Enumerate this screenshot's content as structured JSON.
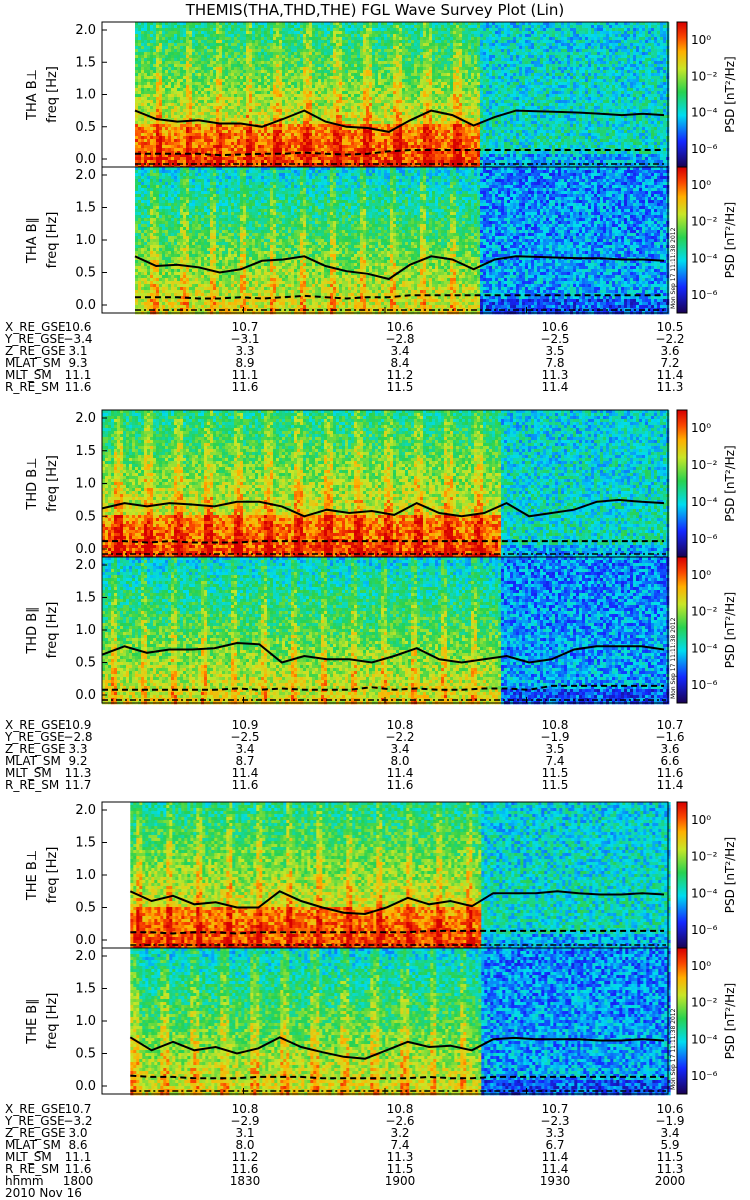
{
  "title": "THEMIS(THA,THD,THE) FGL Wave Survey Plot (Lin)",
  "stamp": "Mon Sep 17 11:11:38 2012",
  "colorbar": {
    "label": "PSD [nT²/Hz]",
    "ticks": [
      "10⁰",
      "10⁻²",
      "10⁻⁴",
      "10⁻⁶"
    ]
  },
  "y_ticks": [
    "0.0",
    "0.5",
    "1.0",
    "1.5",
    "2.0"
  ],
  "colors": {
    "line": "#000000",
    "background": "#ffffff"
  },
  "chart_data": [
    {
      "type": "heatmap",
      "probe": "THA",
      "ylabel": "THA B⊥",
      "yunit": "freq [Hz]",
      "ylim": [
        0,
        2
      ],
      "data_start_hhmm": "1807",
      "transition_hhmm": "1920",
      "solid_line": [
        0.75,
        0.62,
        0.58,
        0.6,
        0.55,
        0.55,
        0.5,
        0.62,
        0.75,
        0.58,
        0.5,
        0.48,
        0.42,
        0.6,
        0.75,
        0.68,
        0.52,
        0.65,
        0.75,
        0.74,
        0.73,
        0.72,
        0.7,
        0.68,
        0.7,
        0.68
      ],
      "dashed_line": [
        0.08,
        0.08,
        0.08,
        0.08,
        0.06,
        0.07,
        0.08,
        0.08,
        0.1,
        0.08,
        0.07,
        0.08,
        0.12,
        0.14,
        0.14,
        0.14,
        0.14,
        0.14,
        0.14,
        0.14,
        0.14,
        0.14,
        0.14,
        0.14,
        0.14,
        0.14
      ]
    },
    {
      "type": "heatmap",
      "probe": "THA",
      "ylabel": "THA B∥",
      "yunit": "freq [Hz]",
      "ylim": [
        0,
        2
      ],
      "data_start_hhmm": "1807",
      "transition_hhmm": "1920",
      "solid_line": [
        0.75,
        0.6,
        0.62,
        0.58,
        0.5,
        0.55,
        0.68,
        0.7,
        0.75,
        0.6,
        0.52,
        0.48,
        0.4,
        0.62,
        0.75,
        0.7,
        0.55,
        0.7,
        0.75,
        0.74,
        0.73,
        0.72,
        0.72,
        0.7,
        0.7,
        0.68
      ],
      "dashed_line": [
        0.12,
        0.12,
        0.12,
        0.1,
        0.1,
        0.12,
        0.1,
        0.12,
        0.14,
        0.12,
        0.1,
        0.12,
        0.12,
        0.15,
        0.15,
        0.15,
        0.15,
        0.15,
        0.15,
        0.15,
        0.15,
        0.15,
        0.15,
        0.15,
        0.15,
        0.15
      ]
    },
    {
      "type": "heatmap",
      "probe": "THD",
      "ylabel": "THD B⊥",
      "yunit": "freq [Hz]",
      "ylim": [
        0,
        2
      ],
      "data_start_hhmm": "1800",
      "transition_hhmm": "1924",
      "solid_line": [
        0.62,
        0.7,
        0.65,
        0.7,
        0.68,
        0.65,
        0.72,
        0.72,
        0.65,
        0.5,
        0.6,
        0.55,
        0.58,
        0.52,
        0.7,
        0.55,
        0.5,
        0.55,
        0.7,
        0.5,
        0.55,
        0.6,
        0.72,
        0.75,
        0.72,
        0.7
      ],
      "dashed_line": [
        0.12,
        0.12,
        0.1,
        0.12,
        0.1,
        0.1,
        0.1,
        0.12,
        0.12,
        0.12,
        0.12,
        0.12,
        0.12,
        0.12,
        0.12,
        0.12,
        0.12,
        0.12,
        0.12,
        0.12,
        0.12,
        0.12,
        0.12,
        0.12,
        0.12,
        0.12
      ]
    },
    {
      "type": "heatmap",
      "probe": "THD",
      "ylabel": "THD B∥",
      "yunit": "freq [Hz]",
      "ylim": [
        0,
        2
      ],
      "data_start_hhmm": "1800",
      "transition_hhmm": "1924",
      "solid_line": [
        0.62,
        0.75,
        0.65,
        0.7,
        0.7,
        0.72,
        0.8,
        0.78,
        0.5,
        0.6,
        0.55,
        0.55,
        0.5,
        0.6,
        0.72,
        0.55,
        0.5,
        0.55,
        0.6,
        0.5,
        0.55,
        0.7,
        0.75,
        0.75,
        0.75,
        0.7
      ],
      "dashed_line": [
        0.08,
        0.08,
        0.08,
        0.08,
        0.08,
        0.08,
        0.1,
        0.08,
        0.1,
        0.08,
        0.08,
        0.08,
        0.12,
        0.08,
        0.1,
        0.08,
        0.08,
        0.1,
        0.1,
        0.08,
        0.14,
        0.14,
        0.14,
        0.14,
        0.14,
        0.14
      ]
    },
    {
      "type": "heatmap",
      "probe": "THE",
      "ylabel": "THE B⊥",
      "yunit": "freq [Hz]",
      "ylim": [
        0,
        2
      ],
      "data_start_hhmm": "1806",
      "transition_hhmm": "1920",
      "solid_line": [
        0.75,
        0.6,
        0.68,
        0.55,
        0.58,
        0.5,
        0.5,
        0.75,
        0.6,
        0.5,
        0.42,
        0.4,
        0.5,
        0.65,
        0.55,
        0.6,
        0.52,
        0.72,
        0.72,
        0.72,
        0.75,
        0.72,
        0.7,
        0.7,
        0.72,
        0.7
      ],
      "dashed_line": [
        0.12,
        0.12,
        0.1,
        0.12,
        0.12,
        0.1,
        0.12,
        0.12,
        0.12,
        0.12,
        0.12,
        0.12,
        0.12,
        0.12,
        0.14,
        0.14,
        0.14,
        0.14,
        0.14,
        0.14,
        0.14,
        0.14,
        0.14,
        0.14,
        0.14,
        0.14
      ]
    },
    {
      "type": "heatmap",
      "probe": "THE",
      "ylabel": "THE B∥",
      "yunit": "freq [Hz]",
      "ylim": [
        0,
        2
      ],
      "data_start_hhmm": "1806",
      "transition_hhmm": "1920",
      "solid_line": [
        0.75,
        0.55,
        0.68,
        0.55,
        0.6,
        0.5,
        0.58,
        0.75,
        0.6,
        0.52,
        0.45,
        0.42,
        0.55,
        0.68,
        0.6,
        0.62,
        0.55,
        0.72,
        0.74,
        0.72,
        0.72,
        0.72,
        0.7,
        0.7,
        0.72,
        0.7
      ],
      "dashed_line": [
        0.16,
        0.14,
        0.14,
        0.12,
        0.12,
        0.12,
        0.14,
        0.14,
        0.14,
        0.12,
        0.12,
        0.12,
        0.12,
        0.12,
        0.14,
        0.12,
        0.12,
        0.14,
        0.14,
        0.14,
        0.14,
        0.14,
        0.14,
        0.14,
        0.14,
        0.14
      ]
    }
  ],
  "ephem_labels": [
    "X_RE_GSE",
    "Y_RE_GSE",
    "Z_RE_GSE",
    "MLAT_SM",
    "MLT_SM",
    "R_RE_SM"
  ],
  "ephem": [
    {
      "rows": [
        [
          "10.6",
          "10.7",
          "10.6",
          "10.6",
          "10.5"
        ],
        [
          "−3.4",
          "−3.1",
          "−2.8",
          "−2.5",
          "−2.2"
        ],
        [
          "3.1",
          "3.3",
          "3.4",
          "3.5",
          "3.6"
        ],
        [
          "9.3",
          "8.9",
          "8.4",
          "7.8",
          "7.2"
        ],
        [
          "11.1",
          "11.1",
          "11.2",
          "11.3",
          "11.4"
        ],
        [
          "11.6",
          "11.6",
          "11.5",
          "11.4",
          "11.3"
        ]
      ]
    },
    {
      "rows": [
        [
          "10.9",
          "10.9",
          "10.8",
          "10.8",
          "10.7"
        ],
        [
          "−2.8",
          "−2.5",
          "−2.2",
          "−1.9",
          "−1.6"
        ],
        [
          "3.3",
          "3.4",
          "3.4",
          "3.5",
          "3.6"
        ],
        [
          "9.2",
          "8.7",
          "8.0",
          "7.4",
          "6.6"
        ],
        [
          "11.3",
          "11.4",
          "11.4",
          "11.5",
          "11.6"
        ],
        [
          "11.7",
          "11.6",
          "11.6",
          "11.5",
          "11.4"
        ]
      ]
    },
    {
      "rows": [
        [
          "10.7",
          "10.8",
          "10.8",
          "10.7",
          "10.6"
        ],
        [
          "−3.2",
          "−2.9",
          "−2.6",
          "−2.3",
          "−1.9"
        ],
        [
          "3.0",
          "3.1",
          "3.2",
          "3.3",
          "3.4"
        ],
        [
          "8.6",
          "8.0",
          "7.4",
          "6.7",
          "5.9"
        ],
        [
          "11.1",
          "11.2",
          "11.3",
          "11.4",
          "11.5"
        ],
        [
          "11.6",
          "11.6",
          "11.5",
          "11.4",
          "11.3"
        ]
      ]
    }
  ],
  "time_label": "hhmm",
  "time_ticks": [
    "1800",
    "1830",
    "1900",
    "1930",
    "2000"
  ],
  "date": "2010 Nov 16"
}
